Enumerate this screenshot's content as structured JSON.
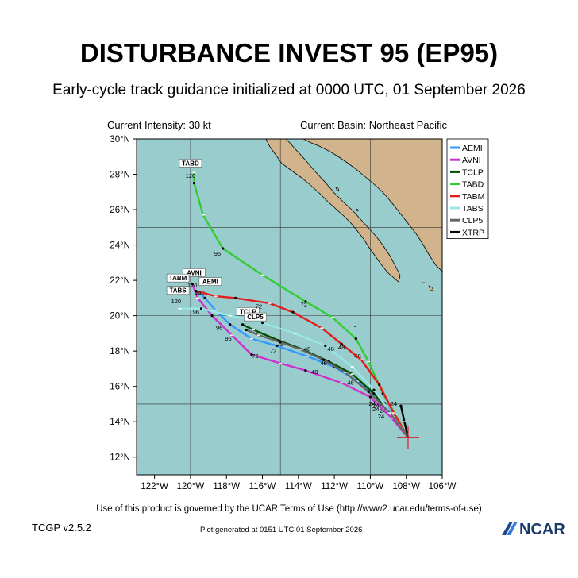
{
  "header": {
    "title": "DISTURBANCE INVEST 95 (EP95)",
    "subtitle": "Early-cycle track guidance initialized at 0000 UTC, 01 September 2026",
    "current_intensity": "Current Intensity: 30 kt",
    "current_basin": "Current Basin: Northeast Pacific"
  },
  "footer": {
    "terms": "Use of this product is governed by the UCAR Terms of Use (http://www2.ucar.edu/terms-of-use)",
    "version": "TCGP v2.5.2",
    "generated": "Plot generated at 0151 UTC   01 September 2026",
    "logo_text": "NCAR"
  },
  "map": {
    "lon_range": [
      -123,
      -106
    ],
    "lat_range": [
      11,
      30
    ],
    "lon_ticks": [
      -122,
      -120,
      -118,
      -116,
      -114,
      -112,
      -110,
      -108,
      -106
    ],
    "lon_tick_labels": [
      "122°W",
      "120°W",
      "118°W",
      "116°W",
      "114°W",
      "112°W",
      "110°W",
      "108°W",
      "106°W"
    ],
    "lat_ticks": [
      12,
      14,
      16,
      18,
      20,
      22,
      24,
      26,
      28,
      30
    ],
    "lat_tick_labels": [
      "12°N",
      "14°N",
      "16°N",
      "18°N",
      "20°N",
      "22°N",
      "24°N",
      "26°N",
      "28°N",
      "30°N"
    ],
    "colors": {
      "ocean": "#99cccc",
      "land": "#d2b48c",
      "grid": "#000000"
    },
    "current_position": {
      "lon": -107.9,
      "lat": 13.1,
      "color": "#e41a1c"
    }
  },
  "chart_data": {
    "type": "line",
    "title": "DISTURBANCE INVEST 95 (EP95)",
    "x_axis": "longitude (°W)",
    "y_axis": "latitude (°N)",
    "legend_position": "top-right",
    "series": [
      {
        "name": "AEMI",
        "color": "#3399ff",
        "points": [
          [
            -107.9,
            13.1
          ],
          [
            -108.6,
            14.3
          ],
          [
            -109.6,
            15.4
          ],
          [
            -110.7,
            16.3
          ],
          [
            -112.0,
            17.1
          ],
          [
            -113.5,
            17.7
          ],
          [
            -115.2,
            18.3
          ],
          [
            -116.6,
            18.7
          ],
          [
            -117.8,
            19.5
          ],
          [
            -118.6,
            20.3
          ],
          [
            -119.2,
            21.0
          ],
          [
            -119.5,
            21.3
          ]
        ],
        "labels": [
          {
            "text": "24",
            "lon": -109.3,
            "lat": 14.5
          },
          {
            "text": "48",
            "lon": -111.1,
            "lat": 16.1
          },
          {
            "text": "72",
            "lon": -115.4,
            "lat": 17.9
          },
          {
            "text": "96",
            "lon": -118.4,
            "lat": 19.2
          },
          {
            "text": "120",
            "lon": -119.5,
            "lat": 21.2
          },
          {
            "text": "AEMI",
            "lon": -118.9,
            "lat": 21.8,
            "box": true
          }
        ]
      },
      {
        "name": "AVNI",
        "color": "#cc33cc",
        "points": [
          [
            -107.9,
            13.1
          ],
          [
            -108.8,
            14.2
          ],
          [
            -110.0,
            15.4
          ],
          [
            -111.6,
            16.2
          ],
          [
            -113.6,
            16.9
          ],
          [
            -115.0,
            17.3
          ],
          [
            -116.6,
            17.8
          ],
          [
            -117.7,
            18.9
          ],
          [
            -118.8,
            20.0
          ],
          [
            -119.6,
            21.0
          ],
          [
            -119.9,
            21.8
          ]
        ],
        "labels": [
          {
            "text": "24",
            "lon": -109.4,
            "lat": 14.2
          },
          {
            "text": "48",
            "lon": -113.1,
            "lat": 16.7
          },
          {
            "text": "72",
            "lon": -116.4,
            "lat": 17.6
          },
          {
            "text": "96",
            "lon": -117.9,
            "lat": 18.6
          },
          {
            "text": "120",
            "lon": -119.9,
            "lat": 21.6
          },
          {
            "text": "AVNI",
            "lon": -119.8,
            "lat": 22.3,
            "box": true
          }
        ]
      },
      {
        "name": "TCLP",
        "color": "#004d00",
        "points": [
          [
            -107.9,
            13.1
          ],
          [
            -108.7,
            14.3
          ],
          [
            -109.8,
            15.6
          ],
          [
            -111.0,
            16.7
          ],
          [
            -112.3,
            17.4
          ],
          [
            -113.8,
            18.1
          ],
          [
            -115.1,
            18.6
          ],
          [
            -116.5,
            19.2
          ],
          [
            -117.1,
            19.5
          ]
        ],
        "labels": [
          {
            "text": "24",
            "lon": -109.7,
            "lat": 14.6
          },
          {
            "text": "48",
            "lon": -112.6,
            "lat": 17.2
          },
          {
            "text": "72",
            "lon": -115.0,
            "lat": 18.3
          },
          {
            "text": "TCLP",
            "lon": -116.8,
            "lat": 20.1,
            "box": true
          }
        ]
      },
      {
        "name": "TABD",
        "color": "#33cc33",
        "points": [
          [
            -107.9,
            13.1
          ],
          [
            -108.6,
            14.4
          ],
          [
            -109.3,
            15.6
          ],
          [
            -110.1,
            17.4
          ],
          [
            -110.8,
            18.7
          ],
          [
            -112.1,
            19.9
          ],
          [
            -113.6,
            20.8
          ],
          [
            -116.0,
            22.3
          ],
          [
            -118.2,
            23.8
          ],
          [
            -119.3,
            25.7
          ],
          [
            -119.8,
            27.5
          ],
          [
            -119.8,
            28.1
          ]
        ],
        "labels": [
          {
            "text": "24",
            "lon": -108.7,
            "lat": 14.9
          },
          {
            "text": "48",
            "lon": -110.7,
            "lat": 17.6
          },
          {
            "text": "72",
            "lon": -113.7,
            "lat": 20.5
          },
          {
            "text": "96",
            "lon": -118.5,
            "lat": 23.4
          },
          {
            "text": "120",
            "lon": -120.0,
            "lat": 27.8
          },
          {
            "text": "TABD",
            "lon": -120.0,
            "lat": 28.5,
            "box": true
          }
        ]
      },
      {
        "name": "TABM",
        "color": "#e41a1c",
        "points": [
          [
            -107.9,
            13.1
          ],
          [
            -108.7,
            14.5
          ],
          [
            -109.5,
            16.1
          ],
          [
            -110.5,
            17.5
          ],
          [
            -111.6,
            18.4
          ],
          [
            -112.7,
            19.3
          ],
          [
            -114.3,
            20.2
          ],
          [
            -115.6,
            20.7
          ],
          [
            -117.5,
            21.0
          ],
          [
            -118.6,
            21.1
          ],
          [
            -119.7,
            21.4
          ]
        ],
        "labels": [
          {
            "text": "24",
            "lon": -109.3,
            "lat": 14.9
          },
          {
            "text": "48",
            "lon": -111.6,
            "lat": 18.1
          },
          {
            "text": "72",
            "lon": -116.2,
            "lat": 20.4
          },
          {
            "text": "96",
            "lon": -119.6,
            "lat": 21.2
          },
          {
            "text": "TABM",
            "lon": -120.7,
            "lat": 22.0,
            "box": true
          }
        ]
      },
      {
        "name": "TABS",
        "color": "#99e6e6",
        "points": [
          [
            -107.9,
            13.1
          ],
          [
            -108.8,
            14.4
          ],
          [
            -109.8,
            15.8
          ],
          [
            -111.0,
            17.1
          ],
          [
            -112.5,
            18.3
          ],
          [
            -114.2,
            19.0
          ],
          [
            -116.0,
            19.6
          ],
          [
            -117.8,
            20.0
          ],
          [
            -119.4,
            20.4
          ],
          [
            -120.6,
            20.4
          ]
        ],
        "labels": [
          {
            "text": "24",
            "lon": -109.7,
            "lat": 14.8
          },
          {
            "text": "48",
            "lon": -112.2,
            "lat": 18.0
          },
          {
            "text": "72",
            "lon": -116.6,
            "lat": 19.8
          },
          {
            "text": "96",
            "lon": -119.7,
            "lat": 20.1
          },
          {
            "text": "120",
            "lon": -120.8,
            "lat": 20.7
          },
          {
            "text": "TABS",
            "lon": -120.7,
            "lat": 21.3,
            "box": true
          }
        ]
      },
      {
        "name": "CLP5",
        "color": "#666666",
        "points": [
          [
            -107.9,
            13.1
          ],
          [
            -108.9,
            14.5
          ],
          [
            -110.1,
            15.7
          ],
          [
            -111.4,
            16.8
          ],
          [
            -112.6,
            17.5
          ],
          [
            -113.9,
            18.1
          ],
          [
            -115.0,
            18.5
          ],
          [
            -116.2,
            18.9
          ],
          [
            -116.9,
            19.2
          ]
        ],
        "labels": [
          {
            "text": "24",
            "lon": -109.9,
            "lat": 14.9
          },
          {
            "text": "48",
            "lon": -113.5,
            "lat": 18.0
          },
          {
            "text": "72",
            "lon": -112.6,
            "lat": 17.3
          },
          {
            "text": "CLP5",
            "lon": -116.4,
            "lat": 19.8,
            "box": true
          }
        ]
      },
      {
        "name": "XTRP",
        "color": "#000000",
        "points": [
          [
            -107.9,
            13.1
          ],
          [
            -108.1,
            14.0
          ],
          [
            -108.3,
            14.9
          ]
        ],
        "labels": []
      }
    ]
  }
}
